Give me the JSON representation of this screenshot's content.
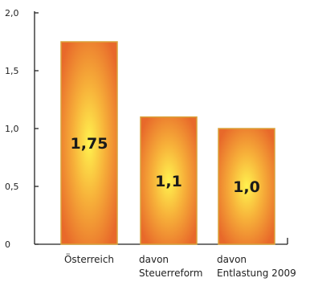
{
  "chart_data": {
    "type": "bar",
    "categories": [
      [
        "Österreich"
      ],
      [
        "davon",
        "Steuerreform"
      ],
      [
        "davon",
        "Entlastung 2009"
      ]
    ],
    "values": [
      1.75,
      1.1,
      1.0
    ],
    "value_labels": [
      "1,75",
      "1,1",
      "1,0"
    ],
    "ylim": [
      0,
      2.0
    ],
    "yticks": [
      0,
      0.5,
      1.0,
      1.5,
      2.0
    ],
    "ytick_labels": [
      "0",
      "0,5",
      "1,0",
      "1,5",
      "2,0"
    ],
    "grid": false,
    "bar_colors": {
      "edge": "#e8692a",
      "center": "#fff24f",
      "mid": "#f7b23a",
      "border": "#d9a23a"
    }
  }
}
